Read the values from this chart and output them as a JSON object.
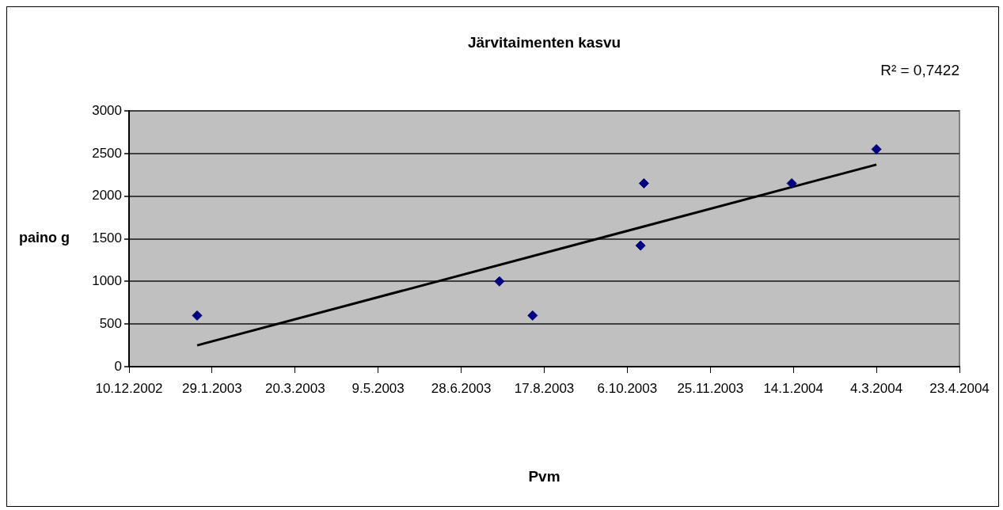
{
  "chart_data": {
    "type": "scatter",
    "title": "Järvitaimenten kasvu",
    "xlabel": "Pvm",
    "ylabel": "paino g",
    "annotations": [
      "R² = 0,7422"
    ],
    "series": [
      {
        "color": "#000080",
        "marker": "diamond",
        "x": [
          "2003-01-20",
          "2003-07-21",
          "2003-08-10",
          "2003-10-16",
          "2003-10-14",
          "2004-01-13",
          "2004-03-04"
        ],
        "values": [
          600,
          1000,
          600,
          2150,
          1420,
          2150,
          2550
        ]
      },
      {
        "type": "line",
        "color": "#000000",
        "marker": "none",
        "x": [
          "2003-01-20",
          "2004-03-04"
        ],
        "values": [
          250,
          2370
        ]
      }
    ],
    "xlim": [
      "2002-12-10",
      "2004-04-23"
    ],
    "xticks": [
      {
        "value": "2002-12-10",
        "label": "10.12.2002"
      },
      {
        "value": "2003-01-29",
        "label": "29.1.2003"
      },
      {
        "value": "2003-03-20",
        "label": "20.3.2003"
      },
      {
        "value": "2003-05-09",
        "label": "9.5.2003"
      },
      {
        "value": "2003-06-28",
        "label": "28.6.2003"
      },
      {
        "value": "2003-08-17",
        "label": "17.8.2003"
      },
      {
        "value": "2003-10-06",
        "label": "6.10.2003"
      },
      {
        "value": "2003-11-25",
        "label": "25.11.2003"
      },
      {
        "value": "2004-01-14",
        "label": "14.1.2004"
      },
      {
        "value": "2004-03-04",
        "label": "4.3.2004"
      },
      {
        "value": "2004-04-23",
        "label": "23.4.2004"
      }
    ],
    "ylim": [
      0,
      3000
    ],
    "yticks": [
      0,
      500,
      1000,
      1500,
      2000,
      2500,
      3000
    ],
    "grid": "y",
    "legend": false,
    "line_style": "solid"
  }
}
